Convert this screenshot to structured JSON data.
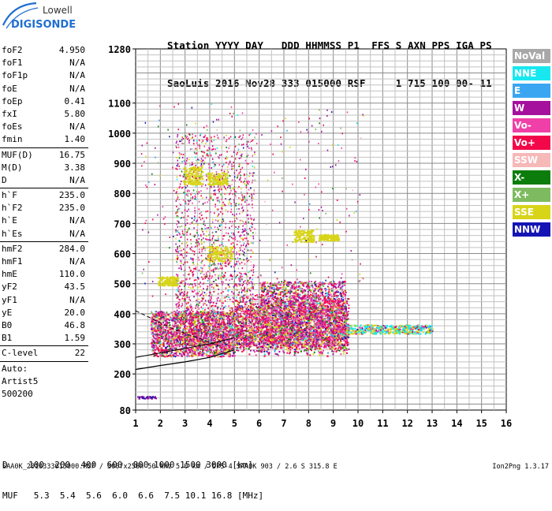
{
  "logo": {
    "line1": "Lowell",
    "line2": "DIGISONDE"
  },
  "header": {
    "row1": "Station YYYY DAY   DDD HHMMSS P1  FFS S AXN PPS IGA PS",
    "row2": "SaoLuis 2016 Nov28 333 015000 RSF     1 715 100 00- 11"
  },
  "params": [
    [
      {
        "k": "foF2",
        "v": "4.950"
      },
      {
        "k": "foF1",
        "v": "N/A"
      },
      {
        "k": "foF1p",
        "v": "N/A"
      },
      {
        "k": "foE",
        "v": "N/A"
      },
      {
        "k": "foEp",
        "v": "0.41"
      },
      {
        "k": "fxI",
        "v": "5.80"
      },
      {
        "k": "foEs",
        "v": "N/A"
      },
      {
        "k": "fmin",
        "v": "1.40"
      }
    ],
    [
      {
        "k": "MUF(D)",
        "v": "16.75"
      },
      {
        "k": "M(D)",
        "v": "3.38"
      },
      {
        "k": "D",
        "v": "N/A"
      }
    ],
    [
      {
        "k": "h`F",
        "v": "235.0"
      },
      {
        "k": "h`F2",
        "v": "235.0"
      },
      {
        "k": "h`E",
        "v": "N/A"
      },
      {
        "k": "h`Es",
        "v": "N/A"
      }
    ],
    [
      {
        "k": "hmF2",
        "v": "284.0"
      },
      {
        "k": "hmF1",
        "v": "N/A"
      },
      {
        "k": "hmE",
        "v": "110.0"
      },
      {
        "k": "yF2",
        "v": "43.5"
      },
      {
        "k": "yF1",
        "v": "N/A"
      },
      {
        "k": "yE",
        "v": "20.0"
      },
      {
        "k": "B0",
        "v": "46.8"
      },
      {
        "k": "B1",
        "v": "1.59"
      }
    ],
    [
      {
        "k": "C-level",
        "v": "22"
      }
    ]
  ],
  "auto": [
    "Auto:",
    "Artist5",
    "500200"
  ],
  "legend": [
    {
      "label": "NoVal",
      "color": "#a8a8a8"
    },
    {
      "label": "NNE",
      "color": "#17e8f0"
    },
    {
      "label": "E",
      "color": "#3aa6f2"
    },
    {
      "label": "W",
      "color": "#a5119c"
    },
    {
      "label": "Vo-",
      "color": "#f040a8"
    },
    {
      "label": "Vo+",
      "color": "#f2084a"
    },
    {
      "label": "SSW",
      "color": "#f7b8b8"
    },
    {
      "label": "X-",
      "color": "#0c7d0c"
    },
    {
      "label": "X+",
      "color": "#7ebb60"
    },
    {
      "label": "SSE",
      "color": "#d8d418"
    },
    {
      "label": "NNW",
      "color": "#1414b4"
    }
  ],
  "axes": {
    "y_ticks": [
      "80",
      "200",
      "300",
      "400",
      "500",
      "600",
      "700",
      "800",
      "900",
      "1000",
      "1100",
      "1280"
    ],
    "x_ticks": [
      "1",
      "2",
      "3",
      "4",
      "5",
      "6",
      "7",
      "8",
      "9",
      "10",
      "11",
      "12",
      "13",
      "14",
      "15",
      "16"
    ]
  },
  "bottom": {
    "row1": "D    100  200  400  600  800 1000 1500 3000 [km]",
    "row2": "MUF   5.3  5.4  5.6  6.0  6.6  7.5 10.1 16.8 [MHz]"
  },
  "footer": {
    "left": "SAA0K_2016333015000.RSF / 300fx256h 50 kHz 5.0 km / DPS-4 SAA0K 903 / 2.6 S 315.8 E",
    "right": "Ion2Png 1.3.17"
  }
}
